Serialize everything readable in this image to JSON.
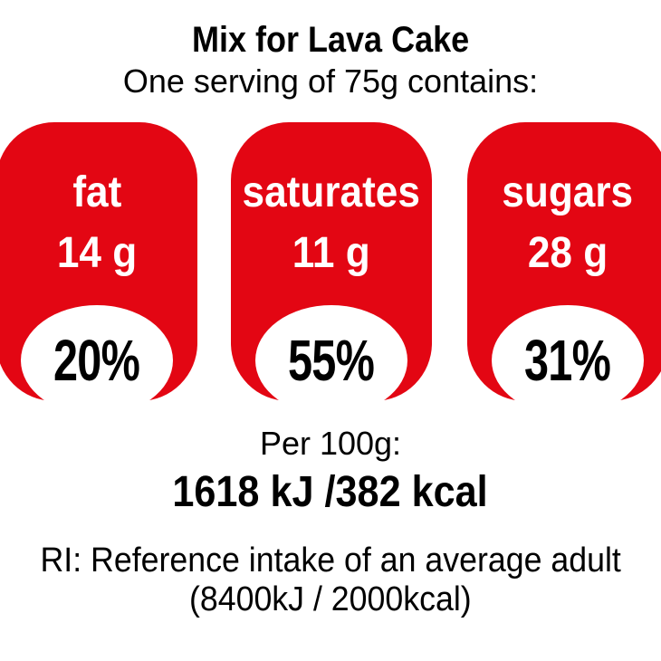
{
  "title": "Mix for Lava Cake",
  "subtitle": "One serving of 75g contains:",
  "colors": {
    "pod_red": "#e30613",
    "pod_text": "#ffffff",
    "percent_text": "#000000",
    "body_text": "#000000",
    "background": "#ffffff"
  },
  "nutrients": [
    {
      "name": "fat",
      "amount": "14 g",
      "percent": "20%"
    },
    {
      "name": "saturates",
      "amount": "11 g",
      "percent": "55%"
    },
    {
      "name": "sugars",
      "amount": "28 g",
      "percent": "31%"
    }
  ],
  "per100": {
    "label": "Per 100g:",
    "value": "1618 kJ /382 kcal"
  },
  "reference": {
    "line1": "RI: Reference intake of an average adult",
    "line2": "(8400kJ / 2000kcal)"
  },
  "chart_data": {
    "type": "table",
    "title": "Mix for Lava Cake",
    "subtitle": "One serving of 75g contains:",
    "categories": [
      "fat",
      "saturates",
      "sugars"
    ],
    "series": [
      {
        "name": "amount per serving (g)",
        "values": [
          14,
          11,
          28
        ]
      },
      {
        "name": "percent of reference intake (%)",
        "values": [
          20,
          55,
          31
        ]
      }
    ],
    "annotations": [
      "Per 100g: 1618 kJ /382 kcal",
      "RI: Reference intake of an average adult (8400kJ / 2000kcal)"
    ],
    "legend_position": "none",
    "grid": false
  }
}
